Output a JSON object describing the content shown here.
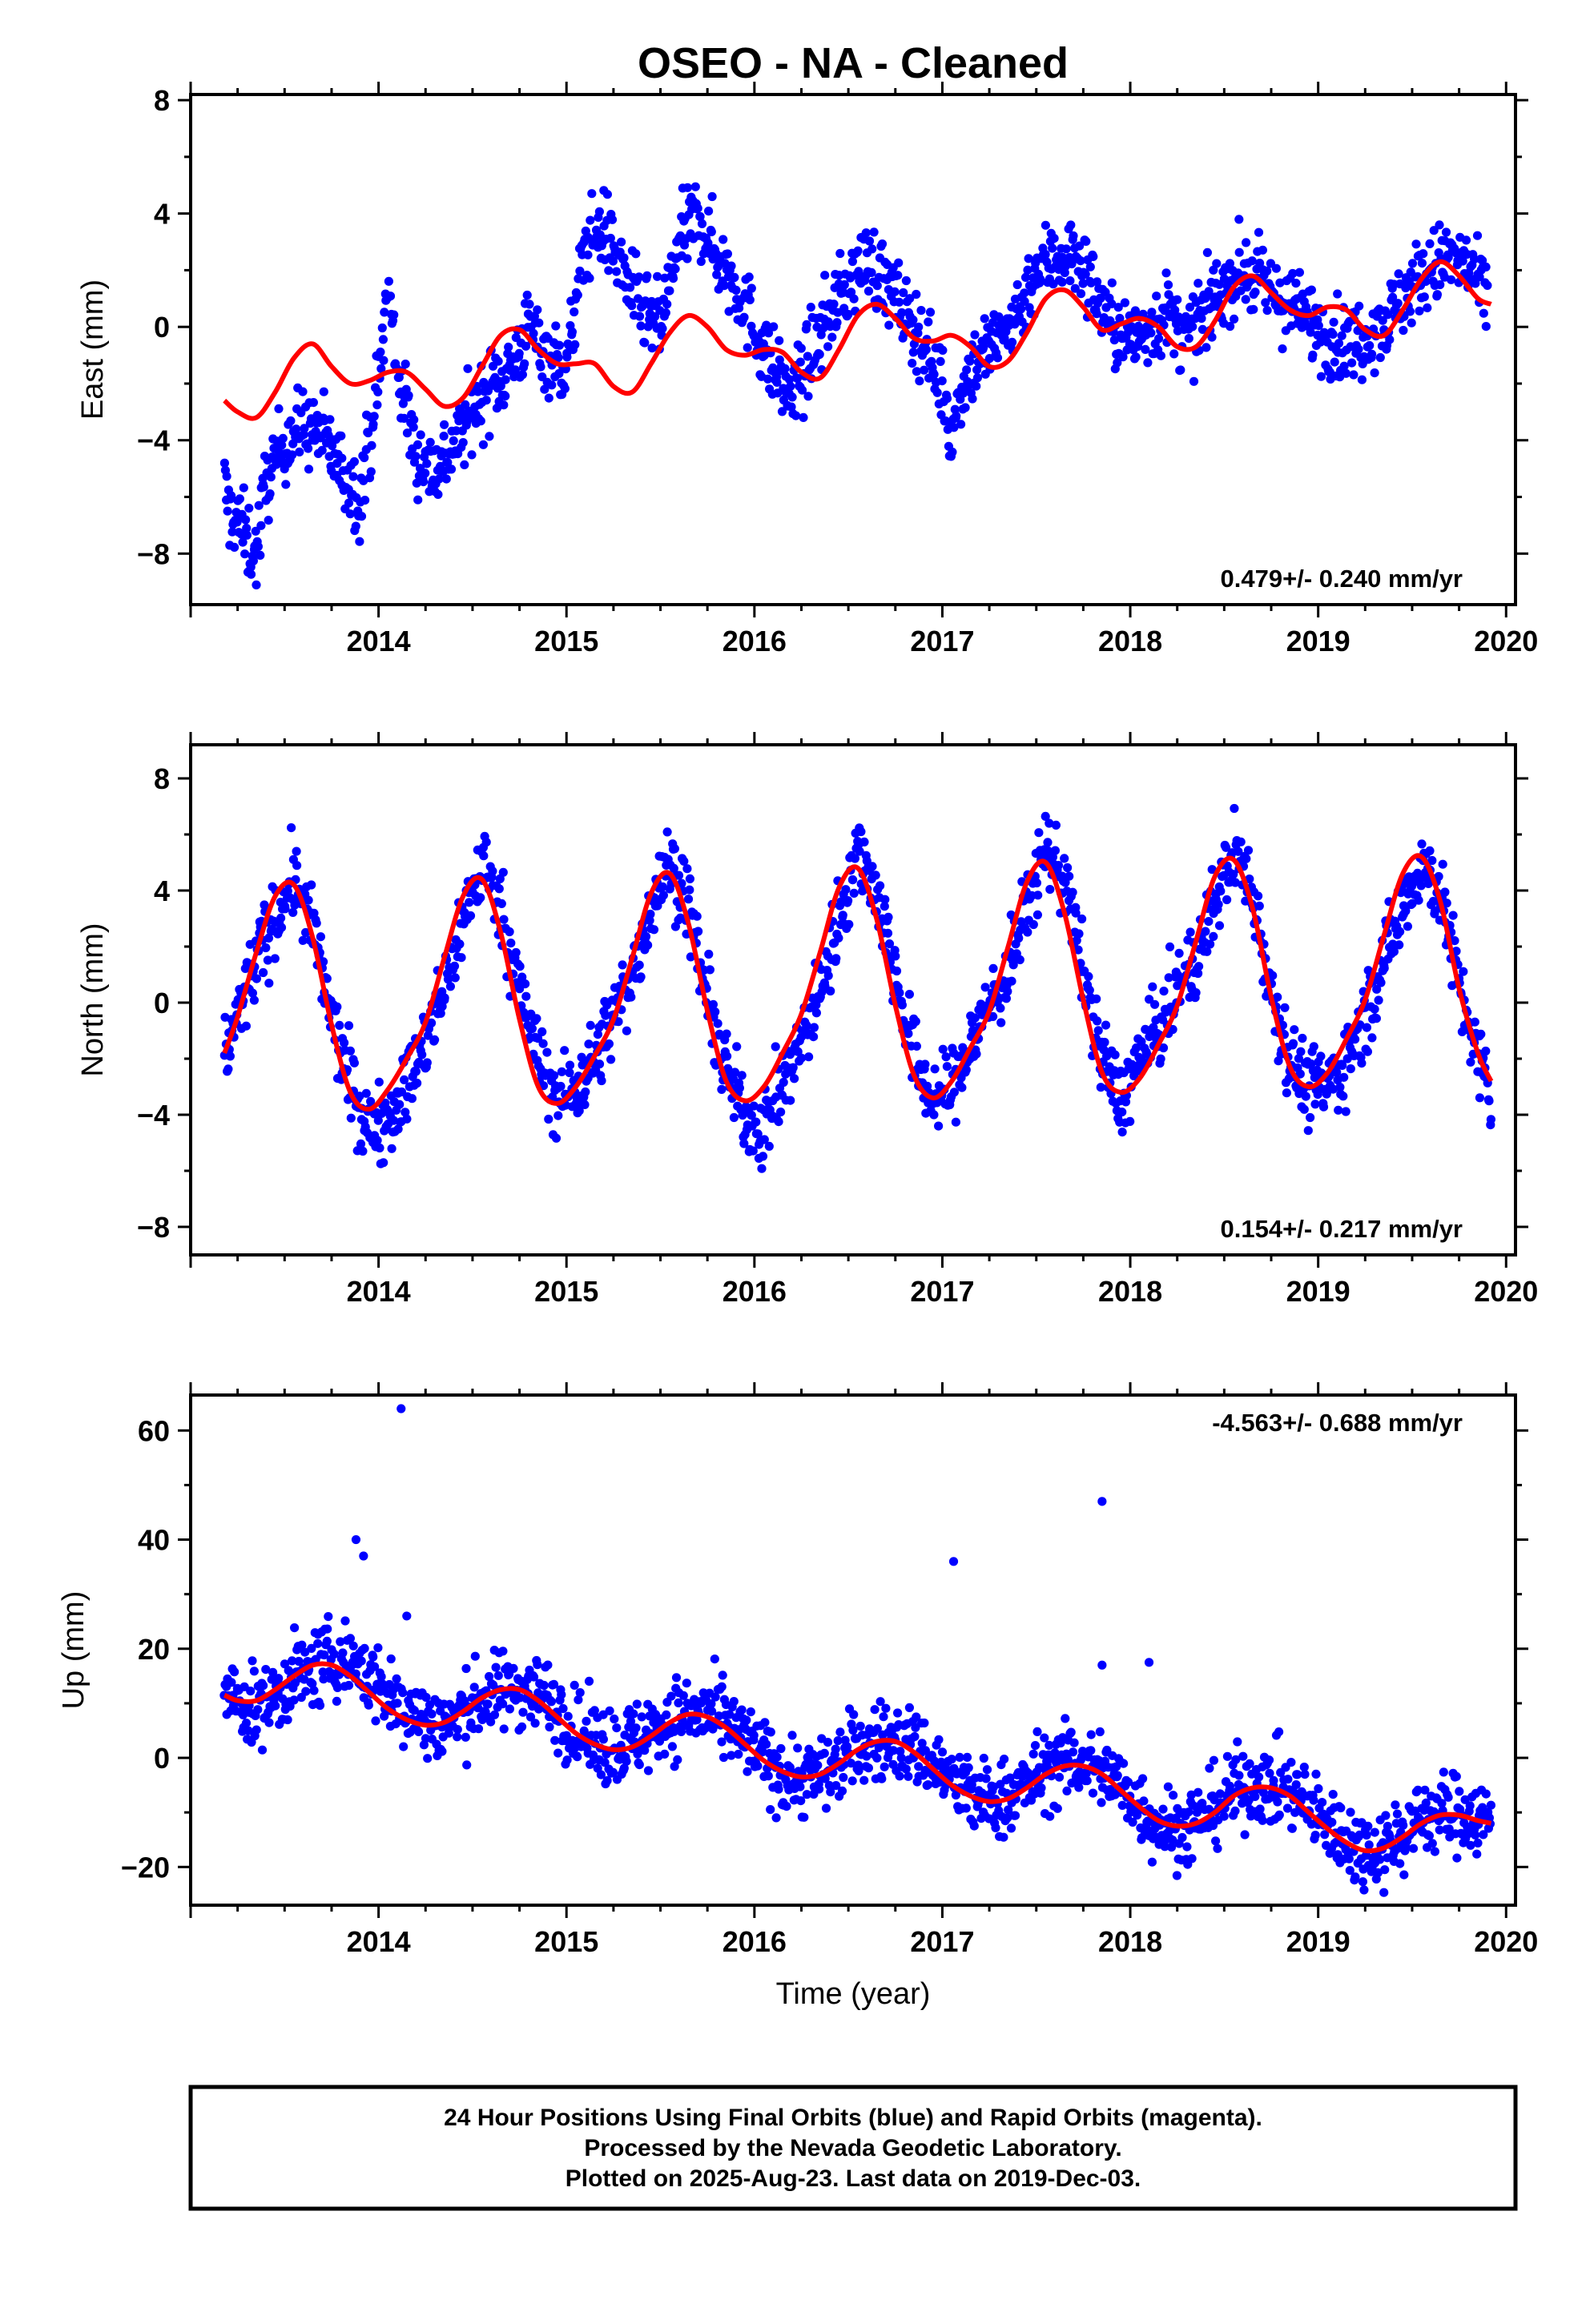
{
  "title": "OSEO  - NA - Cleaned",
  "colors": {
    "final_orbits": "#0000ff",
    "fit": "#ff0000",
    "frame": "#000000"
  },
  "chart_data": [
    {
      "type": "scatter",
      "ylabel": "East (mm)",
      "rate": "0.479+/- 0.240 mm/yr",
      "rate_position": "bottom-right",
      "xlim": [
        2013.0,
        2020.05
      ],
      "ylim": [
        -9.8,
        8.2
      ],
      "xticks": [
        2014,
        2015,
        2016,
        2017,
        2018,
        2019,
        2020
      ],
      "ytick_labels": [
        "8",
        "4",
        "0",
        "−4",
        "−8"
      ],
      "yticks": [
        8,
        4,
        0,
        -4,
        -8
      ],
      "grid": false,
      "series": [
        {
          "role": "observations",
          "marker": "dot",
          "x": [
            2013.18,
            2013.2,
            2013.25,
            2013.3,
            2013.35,
            2013.4,
            2013.5,
            2013.6,
            2013.7,
            2013.8,
            2013.9,
            2014.0,
            2014.05,
            2014.1,
            2014.2,
            2014.3,
            2014.4,
            2014.5,
            2014.6,
            2014.7,
            2014.8,
            2014.9,
            2015.0,
            2015.1,
            2015.2,
            2015.3,
            2015.4,
            2015.5,
            2015.6,
            2015.7,
            2015.8,
            2015.9,
            2016.0,
            2016.1,
            2016.2,
            2016.3,
            2016.4,
            2016.5,
            2016.6,
            2016.7,
            2016.8,
            2016.9,
            2017.0,
            2017.05,
            2017.1,
            2017.2,
            2017.3,
            2017.4,
            2017.5,
            2017.6,
            2017.7,
            2017.8,
            2017.9,
            2018.0,
            2018.1,
            2018.2,
            2018.3,
            2018.4,
            2018.5,
            2018.6,
            2018.7,
            2018.8,
            2018.9,
            2019.0,
            2019.1,
            2019.2,
            2019.3,
            2019.4,
            2019.5,
            2019.6,
            2019.7,
            2019.8,
            2019.9
          ],
          "y": [
            -5.5,
            -6.5,
            -6.8,
            -7.5,
            -8.0,
            -5.5,
            -4.0,
            -3.5,
            -3.8,
            -5.0,
            -6.0,
            -2.0,
            1.5,
            -1.5,
            -4.5,
            -5.0,
            -4.2,
            -3.0,
            -2.0,
            -1.5,
            0.0,
            -1.0,
            -1.5,
            3.0,
            3.5,
            2.0,
            0.5,
            0.0,
            3.0,
            4.0,
            2.5,
            1.5,
            0.0,
            -1.5,
            -2.5,
            -1.0,
            0.5,
            1.5,
            2.5,
            1.5,
            0.5,
            -0.5,
            -2.0,
            -4.0,
            -2.0,
            -1.0,
            -0.5,
            0.5,
            2.0,
            2.5,
            2.5,
            1.5,
            0.0,
            -0.5,
            0.0,
            0.5,
            -0.5,
            0.5,
            1.5,
            2.0,
            1.5,
            1.0,
            0.5,
            0.0,
            -0.5,
            -0.5,
            0.0,
            0.5,
            1.5,
            2.0,
            2.5,
            2.0,
            1.0
          ]
        },
        {
          "role": "fit",
          "line": "solid",
          "x": [
            2013.18,
            2013.25,
            2013.35,
            2013.45,
            2013.55,
            2013.65,
            2013.75,
            2013.85,
            2013.95,
            2014.05,
            2014.15,
            2014.25,
            2014.35,
            2014.45,
            2014.55,
            2014.65,
            2014.75,
            2014.85,
            2014.95,
            2015.05,
            2015.15,
            2015.25,
            2015.35,
            2015.45,
            2015.55,
            2015.65,
            2015.75,
            2015.85,
            2015.95,
            2016.05,
            2016.15,
            2016.25,
            2016.35,
            2016.45,
            2016.55,
            2016.65,
            2016.75,
            2016.85,
            2016.95,
            2017.05,
            2017.15,
            2017.25,
            2017.35,
            2017.45,
            2017.55,
            2017.65,
            2017.75,
            2017.85,
            2017.95,
            2018.05,
            2018.15,
            2018.25,
            2018.35,
            2018.45,
            2018.55,
            2018.65,
            2018.75,
            2018.85,
            2018.95,
            2019.05,
            2019.15,
            2019.25,
            2019.35,
            2019.45,
            2019.55,
            2019.65,
            2019.75,
            2019.85,
            2019.92
          ],
          "y": [
            -2.6,
            -3.0,
            -3.2,
            -2.3,
            -1.1,
            -0.6,
            -1.4,
            -2.0,
            -1.9,
            -1.6,
            -1.6,
            -2.2,
            -2.8,
            -2.5,
            -1.4,
            -0.3,
            -0.1,
            -0.8,
            -1.3,
            -1.3,
            -1.3,
            -2.1,
            -2.3,
            -1.3,
            -0.2,
            0.4,
            0.0,
            -0.8,
            -1.0,
            -0.8,
            -0.9,
            -1.6,
            -1.8,
            -0.8,
            0.4,
            0.8,
            0.3,
            -0.4,
            -0.5,
            -0.3,
            -0.7,
            -1.4,
            -1.2,
            -0.2,
            1.0,
            1.3,
            0.7,
            -0.1,
            0.1,
            0.3,
            0.0,
            -0.7,
            -0.7,
            0.2,
            1.4,
            1.8,
            1.2,
            0.6,
            0.4,
            0.7,
            0.6,
            -0.1,
            -0.3,
            0.6,
            1.7,
            2.3,
            1.8,
            1.0,
            0.8
          ]
        }
      ]
    },
    {
      "type": "scatter",
      "ylabel": "North (mm)",
      "rate": "0.154+/- 0.217 mm/yr",
      "rate_position": "bottom-right",
      "xlim": [
        2013.0,
        2020.05
      ],
      "ylim": [
        -9.0,
        9.2
      ],
      "xticks": [
        2014,
        2015,
        2016,
        2017,
        2018,
        2019,
        2020
      ],
      "ytick_labels": [
        "8",
        "4",
        "0",
        "−4",
        "−8"
      ],
      "yticks": [
        8,
        4,
        0,
        -4,
        -8
      ],
      "grid": false,
      "series": [
        {
          "role": "observations",
          "marker": "dot",
          "x": [
            2013.18,
            2013.25,
            2013.35,
            2013.45,
            2013.55,
            2013.65,
            2013.75,
            2013.85,
            2013.95,
            2014.05,
            2014.15,
            2014.25,
            2014.35,
            2014.45,
            2014.55,
            2014.65,
            2014.75,
            2014.85,
            2014.95,
            2015.05,
            2015.15,
            2015.25,
            2015.35,
            2015.45,
            2015.55,
            2015.65,
            2015.75,
            2015.85,
            2015.95,
            2016.05,
            2016.15,
            2016.25,
            2016.35,
            2016.45,
            2016.55,
            2016.65,
            2016.75,
            2016.85,
            2016.95,
            2017.05,
            2017.15,
            2017.25,
            2017.35,
            2017.45,
            2017.55,
            2017.65,
            2017.75,
            2017.85,
            2017.95,
            2018.05,
            2018.15,
            2018.25,
            2018.35,
            2018.45,
            2018.55,
            2018.65,
            2018.75,
            2018.85,
            2018.95,
            2019.05,
            2019.15,
            2019.25,
            2019.35,
            2019.45,
            2019.55,
            2019.65,
            2019.75,
            2019.85,
            2019.92
          ],
          "y": [
            -1.8,
            -0.5,
            1.5,
            3.0,
            4.5,
            2.5,
            -0.5,
            -3.0,
            -4.5,
            -4.0,
            -3.0,
            -1.5,
            0.5,
            3.0,
            5.0,
            3.5,
            0.5,
            -2.0,
            -3.5,
            -3.0,
            -2.0,
            -0.5,
            1.0,
            3.5,
            5.0,
            3.5,
            0.0,
            -2.5,
            -4.0,
            -4.5,
            -3.0,
            -1.5,
            0.5,
            3.0,
            5.5,
            4.0,
            1.0,
            -2.0,
            -3.5,
            -3.0,
            -1.5,
            0.0,
            1.0,
            3.5,
            5.5,
            4.5,
            1.0,
            -2.0,
            -3.5,
            -2.0,
            -1.0,
            0.5,
            1.5,
            3.5,
            5.5,
            4.0,
            0.5,
            -2.0,
            -3.0,
            -3.0,
            -2.0,
            -0.5,
            1.5,
            3.5,
            5.0,
            4.0,
            0.5,
            -2.0,
            -3.5
          ]
        },
        {
          "role": "fit",
          "line": "solid",
          "x": [
            2013.18,
            2013.25,
            2013.35,
            2013.45,
            2013.55,
            2013.65,
            2013.75,
            2013.85,
            2013.95,
            2014.05,
            2014.15,
            2014.25,
            2014.35,
            2014.45,
            2014.55,
            2014.65,
            2014.75,
            2014.85,
            2014.95,
            2015.05,
            2015.15,
            2015.25,
            2015.35,
            2015.45,
            2015.55,
            2015.65,
            2015.75,
            2015.85,
            2015.95,
            2016.05,
            2016.15,
            2016.25,
            2016.35,
            2016.45,
            2016.55,
            2016.65,
            2016.75,
            2016.85,
            2016.95,
            2017.05,
            2017.15,
            2017.25,
            2017.35,
            2017.45,
            2017.55,
            2017.65,
            2017.75,
            2017.85,
            2017.95,
            2018.05,
            2018.15,
            2018.25,
            2018.35,
            2018.45,
            2018.55,
            2018.65,
            2018.75,
            2018.85,
            2018.95,
            2019.05,
            2019.15,
            2019.25,
            2019.35,
            2019.45,
            2019.55,
            2019.65,
            2019.75,
            2019.85,
            2019.92
          ],
          "y": [
            -1.8,
            -0.5,
            1.8,
            3.8,
            4.2,
            2.3,
            -0.8,
            -3.2,
            -3.8,
            -3.1,
            -2.0,
            -0.7,
            1.6,
            3.8,
            4.4,
            2.5,
            -0.6,
            -3.0,
            -3.6,
            -3.0,
            -1.9,
            -0.6,
            1.6,
            3.9,
            4.6,
            2.8,
            -0.3,
            -2.8,
            -3.5,
            -3.0,
            -1.8,
            -0.4,
            1.8,
            4.1,
            4.8,
            3.0,
            -0.1,
            -2.6,
            -3.4,
            -2.8,
            -1.6,
            -0.3,
            2.0,
            4.3,
            5.0,
            3.2,
            0.1,
            -2.5,
            -3.2,
            -2.7,
            -1.5,
            -0.1,
            2.2,
            4.5,
            5.1,
            3.4,
            0.2,
            -2.3,
            -3.0,
            -2.5,
            -1.3,
            0.1,
            2.4,
            4.6,
            5.2,
            3.6,
            0.5,
            -1.8,
            -2.8
          ]
        }
      ]
    },
    {
      "type": "scatter",
      "ylabel": "Up (mm)",
      "xlabel": "Time (year)",
      "rate": "-4.563+/- 0.688 mm/yr",
      "rate_position": "top-right",
      "xlim": [
        2013.0,
        2020.05
      ],
      "ylim": [
        -27,
        66.5
      ],
      "xticks": [
        2014,
        2015,
        2016,
        2017,
        2018,
        2019,
        2020
      ],
      "ytick_labels": [
        "60",
        "40",
        "20",
        "0",
        "−20"
      ],
      "yticks": [
        60,
        40,
        20,
        0,
        -20
      ],
      "grid": false,
      "series": [
        {
          "role": "observations",
          "marker": "dot",
          "x": [
            2013.18,
            2013.25,
            2013.35,
            2013.45,
            2013.55,
            2013.65,
            2013.75,
            2013.85,
            2013.95,
            2014.05,
            2014.15,
            2014.25,
            2014.35,
            2014.45,
            2014.55,
            2014.65,
            2014.75,
            2014.85,
            2014.95,
            2015.05,
            2015.15,
            2015.25,
            2015.35,
            2015.45,
            2015.55,
            2015.65,
            2015.75,
            2015.85,
            2015.95,
            2016.05,
            2016.15,
            2016.25,
            2016.35,
            2016.45,
            2016.55,
            2016.65,
            2016.75,
            2016.85,
            2016.95,
            2017.05,
            2017.15,
            2017.25,
            2017.35,
            2017.45,
            2017.55,
            2017.65,
            2017.75,
            2017.85,
            2017.95,
            2018.05,
            2018.15,
            2018.25,
            2018.35,
            2018.45,
            2018.55,
            2018.65,
            2018.75,
            2018.85,
            2018.95,
            2019.05,
            2019.15,
            2019.25,
            2019.35,
            2019.45,
            2019.55,
            2019.65,
            2019.75,
            2019.85,
            2019.92
          ],
          "y": [
            12,
            10,
            9,
            11,
            15,
            16,
            18,
            18,
            15,
            11,
            9,
            7,
            6,
            8,
            11,
            12,
            13,
            12,
            9,
            5,
            3,
            2,
            3,
            5,
            7,
            8,
            8,
            6,
            3,
            0,
            -3,
            -4,
            -3,
            -1,
            2,
            3,
            3,
            2,
            -1,
            -4,
            -7,
            -8,
            -7,
            -5,
            -2,
            -1,
            -1,
            -2,
            -5,
            -9,
            -12,
            -13,
            -12,
            -9,
            -6,
            -5,
            -5,
            -6,
            -9,
            -12,
            -15,
            -17,
            -16,
            -14,
            -11,
            -10,
            -10,
            -11,
            -12
          ]
        },
        {
          "role": "fit",
          "line": "solid",
          "x": [
            2013.18,
            2013.25,
            2013.35,
            2013.45,
            2013.55,
            2013.65,
            2013.75,
            2013.85,
            2013.95,
            2014.05,
            2014.15,
            2014.25,
            2014.35,
            2014.45,
            2014.55,
            2014.65,
            2014.75,
            2014.85,
            2014.95,
            2015.05,
            2015.15,
            2015.25,
            2015.35,
            2015.45,
            2015.55,
            2015.65,
            2015.75,
            2015.85,
            2015.95,
            2016.05,
            2016.15,
            2016.25,
            2016.35,
            2016.45,
            2016.55,
            2016.65,
            2016.75,
            2016.85,
            2016.95,
            2017.05,
            2017.15,
            2017.25,
            2017.35,
            2017.45,
            2017.55,
            2017.65,
            2017.75,
            2017.85,
            2017.95,
            2018.05,
            2018.15,
            2018.25,
            2018.35,
            2018.45,
            2018.55,
            2018.65,
            2018.75,
            2018.85,
            2018.95,
            2019.05,
            2019.15,
            2019.25,
            2019.35,
            2019.45,
            2019.55,
            2019.65,
            2019.75,
            2019.85,
            2019.92
          ],
          "y": [
            11.5,
            10.5,
            10.5,
            12.5,
            15,
            17,
            17,
            15,
            12,
            9,
            7,
            6,
            6.5,
            8.5,
            11,
            12.5,
            12.5,
            10.5,
            7.5,
            4.5,
            2.5,
            1.5,
            2,
            4,
            6.5,
            8,
            7.5,
            5.5,
            2.5,
            -0.5,
            -2.5,
            -3.5,
            -3,
            -1,
            1.5,
            3,
            3,
            1,
            -2,
            -5,
            -7,
            -8,
            -7.5,
            -5.5,
            -3,
            -1.5,
            -1.5,
            -3,
            -6,
            -9,
            -11.5,
            -12.5,
            -12,
            -10,
            -7,
            -5.5,
            -5.5,
            -7,
            -10,
            -13,
            -15.5,
            -17,
            -16.5,
            -14.5,
            -12,
            -10.5,
            -10.5,
            -11.5,
            -12
          ]
        }
      ],
      "outliers": {
        "x": [
          2013.88,
          2013.92,
          2014.12,
          2014.15,
          2017.06,
          2017.85,
          2017.85,
          2018.1
        ],
        "y": [
          40,
          37,
          64,
          26,
          36,
          47,
          17,
          17.5
        ]
      }
    }
  ],
  "footer": {
    "line1": "24 Hour Positions Using Final Orbits (blue) and Rapid Orbits (magenta).",
    "line2": "Processed by the Nevada Geodetic Laboratory.",
    "line3": "Plotted on 2025-Aug-23. Last data on 2019-Dec-03."
  }
}
